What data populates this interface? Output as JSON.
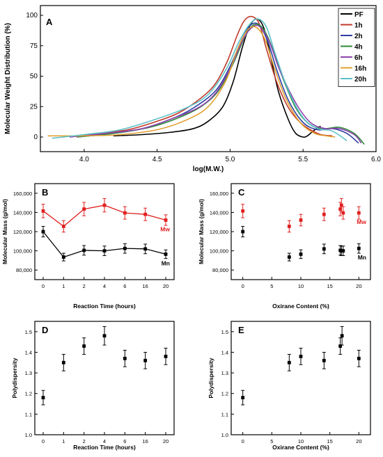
{
  "chart_data": [
    {
      "id": "A",
      "type": "line",
      "panel_label": "A",
      "xlabel": "log(M.W.)",
      "ylabel": "Molecular Weight Distribution (%)",
      "xlim": [
        3.7,
        6.0
      ],
      "ylim": [
        -12,
        108
      ],
      "xticks": [
        4.0,
        4.5,
        5.0,
        5.5,
        6.0
      ],
      "xtick_labels": [
        "4.0",
        "4.5",
        "5.0",
        "5.5",
        "6.0"
      ],
      "yticks": [
        0,
        25,
        50,
        75,
        100
      ],
      "ytick_labels": [
        "0",
        "25",
        "50",
        "75",
        "100"
      ],
      "legend_position": "top-right",
      "series": [
        {
          "name": "PF",
          "color": "#000000",
          "x": [
            4.2,
            4.4,
            4.6,
            4.75,
            4.85,
            4.95,
            5.02,
            5.08,
            5.13,
            5.18,
            5.23,
            5.28,
            5.33,
            5.4,
            5.45,
            5.5,
            5.53,
            5.57,
            5.62
          ],
          "y": [
            1,
            2,
            4,
            7,
            13,
            25,
            45,
            72,
            90,
            97,
            90,
            65,
            38,
            14,
            3,
            0,
            1,
            5,
            9
          ]
        },
        {
          "name": "1h",
          "color": "#c0392b",
          "x": [
            3.9,
            4.1,
            4.3,
            4.5,
            4.65,
            4.8,
            4.9,
            4.98,
            5.05,
            5.1,
            5.15,
            5.2,
            5.25,
            5.32,
            5.4,
            5.48,
            5.55,
            5.62,
            5.7
          ],
          "y": [
            0,
            3,
            6,
            13,
            20,
            32,
            44,
            62,
            84,
            96,
            99,
            93,
            72,
            45,
            24,
            12,
            6,
            2,
            1
          ]
        },
        {
          "name": "2h",
          "color": "#2d3fa3",
          "x": [
            3.95,
            4.2,
            4.4,
            4.6,
            4.75,
            4.9,
            5.0,
            5.08,
            5.14,
            5.2,
            5.26,
            5.32,
            5.4,
            5.5,
            5.6,
            5.7,
            5.8,
            5.88
          ],
          "y": [
            0,
            3,
            7,
            15,
            24,
            38,
            58,
            80,
            92,
            92,
            78,
            55,
            30,
            12,
            6,
            7,
            3,
            -5
          ]
        },
        {
          "name": "4h",
          "color": "#2e8b3a",
          "x": [
            3.95,
            4.2,
            4.45,
            4.65,
            4.8,
            4.92,
            5.02,
            5.1,
            5.16,
            5.22,
            5.28,
            5.35,
            5.45,
            5.55,
            5.65,
            5.75,
            5.85,
            5.92
          ],
          "y": [
            0,
            3,
            8,
            16,
            25,
            38,
            60,
            82,
            92,
            90,
            76,
            52,
            24,
            10,
            7,
            8,
            3,
            -6
          ]
        },
        {
          "name": "6h",
          "color": "#8e44ad",
          "x": [
            3.9,
            4.15,
            4.4,
            4.6,
            4.78,
            4.9,
            5.0,
            5.08,
            5.14,
            5.2,
            5.27,
            5.34,
            5.45,
            5.55,
            5.65,
            5.75,
            5.85,
            5.9
          ],
          "y": [
            0,
            3,
            7,
            15,
            24,
            36,
            56,
            78,
            89,
            91,
            78,
            55,
            28,
            12,
            7,
            7,
            2,
            -5
          ]
        },
        {
          "name": "16h",
          "color": "#e0a030",
          "x": [
            3.75,
            4.0,
            4.25,
            4.5,
            4.7,
            4.85,
            4.97,
            5.05,
            5.12,
            5.18,
            5.24,
            5.3,
            5.38,
            5.48,
            5.58,
            5.66,
            5.72
          ],
          "y": [
            1,
            1,
            2,
            6,
            14,
            25,
            46,
            72,
            88,
            90,
            80,
            58,
            32,
            12,
            3,
            1,
            0
          ]
        },
        {
          "name": "20h",
          "color": "#5bc0c8",
          "x": [
            3.78,
            4.0,
            4.25,
            4.5,
            4.7,
            4.85,
            4.97,
            5.06,
            5.13,
            5.19,
            5.25,
            5.31,
            5.4,
            5.5,
            5.6,
            5.7,
            5.8
          ],
          "y": [
            -1,
            2,
            6,
            15,
            24,
            35,
            55,
            78,
            92,
            97,
            90,
            68,
            38,
            16,
            7,
            5,
            -3
          ]
        }
      ]
    },
    {
      "id": "B",
      "type": "scatter",
      "panel_label": "B",
      "xlabel": "Reaction Time (hours)",
      "ylabel": "Molecular Mass (g/mol)",
      "ylim": [
        70000,
        170000
      ],
      "yticks": [
        80000,
        100000,
        120000,
        140000,
        160000
      ],
      "ytick_labels": [
        "80,000",
        "100,000",
        "120,000",
        "140,000",
        "160,000"
      ],
      "categories": [
        "0",
        "1",
        "2",
        "4",
        "6",
        "16",
        "20"
      ],
      "series_labels_inline": true,
      "series": [
        {
          "name": "Mw",
          "color": "#e02020",
          "values": [
            141500,
            125500,
            143500,
            147500,
            139500,
            138000,
            132000
          ],
          "errors": [
            7000,
            6000,
            7000,
            7000,
            6500,
            6500,
            5500
          ]
        },
        {
          "name": "Mn",
          "color": "#000000",
          "values": [
            120000,
            93500,
            100500,
            100000,
            102500,
            102000,
            96500
          ],
          "errors": [
            5500,
            4000,
            5000,
            5000,
            5000,
            5000,
            4500
          ]
        }
      ]
    },
    {
      "id": "C",
      "type": "scatter",
      "panel_label": "C",
      "xlabel": "Oxirane Content (%)",
      "ylabel": "Molecular Mass (g/mol)",
      "xlim": [
        -2,
        22
      ],
      "ylim": [
        70000,
        170000
      ],
      "xticks": [
        0,
        5,
        10,
        15,
        20
      ],
      "xtick_labels": [
        "0",
        "5",
        "10",
        "15",
        "20"
      ],
      "yticks": [
        80000,
        100000,
        120000,
        140000,
        160000
      ],
      "ytick_labels": [
        "80,000",
        "100,000",
        "120,000",
        "140,000",
        "160,000"
      ],
      "series_labels_inline": true,
      "series": [
        {
          "name": "Mw",
          "color": "#e02020",
          "x": [
            0,
            8,
            10,
            14,
            16.8,
            17,
            17.3,
            20
          ],
          "y": [
            141500,
            125500,
            132000,
            138000,
            143500,
            147500,
            139500,
            139500
          ],
          "errors": [
            7000,
            6000,
            6000,
            6500,
            7000,
            7000,
            6500,
            6500
          ]
        },
        {
          "name": "Mn",
          "color": "#000000",
          "x": [
            0,
            8,
            10,
            14,
            16.8,
            17,
            17.3,
            20
          ],
          "y": [
            120000,
            93500,
            96500,
            102000,
            100500,
            100000,
            100000,
            102500
          ],
          "errors": [
            5500,
            4000,
            4500,
            5000,
            5000,
            5000,
            5000,
            5000
          ]
        }
      ]
    },
    {
      "id": "D",
      "type": "scatter",
      "panel_label": "D",
      "xlabel": "Reaction Time (hours)",
      "ylabel": "Polydispersity",
      "ylim": [
        1.0,
        1.55
      ],
      "yticks": [
        1.0,
        1.1,
        1.2,
        1.3,
        1.4,
        1.5
      ],
      "ytick_labels": [
        "1.0",
        "1.1",
        "1.2",
        "1.3",
        "1.4",
        "1.5"
      ],
      "categories": [
        "0",
        "1",
        "2",
        "4",
        "6",
        "16",
        "20"
      ],
      "series": [
        {
          "name": "",
          "color": "#000000",
          "values": [
            1.18,
            1.35,
            1.43,
            1.48,
            1.37,
            1.36,
            1.38
          ],
          "errors": [
            0.035,
            0.04,
            0.04,
            0.045,
            0.04,
            0.04,
            0.04
          ]
        }
      ]
    },
    {
      "id": "E",
      "type": "scatter",
      "panel_label": "E",
      "xlabel": "Oxirane Content (%)",
      "ylabel": "Polydispersity",
      "xlim": [
        -2,
        22
      ],
      "ylim": [
        1.0,
        1.55
      ],
      "xticks": [
        0,
        5,
        10,
        15,
        20
      ],
      "xtick_labels": [
        "0",
        "5",
        "10",
        "15",
        "20"
      ],
      "yticks": [
        1.0,
        1.1,
        1.2,
        1.3,
        1.4,
        1.5
      ],
      "ytick_labels": [
        "1.0",
        "1.1",
        "1.2",
        "1.3",
        "1.4",
        "1.5"
      ],
      "series": [
        {
          "name": "",
          "color": "#000000",
          "x": [
            0,
            8,
            10,
            14,
            16.8,
            17.1,
            20
          ],
          "y": [
            1.18,
            1.35,
            1.38,
            1.36,
            1.43,
            1.48,
            1.37
          ],
          "errors": [
            0.035,
            0.04,
            0.04,
            0.04,
            0.04,
            0.045,
            0.04
          ]
        }
      ]
    }
  ]
}
